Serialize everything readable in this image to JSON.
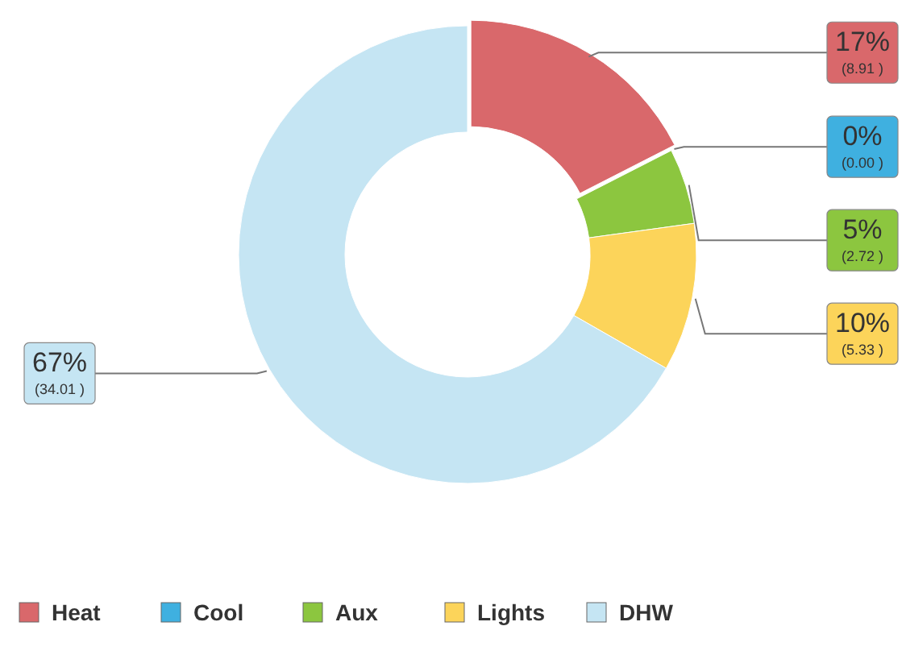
{
  "chart_data": {
    "type": "donut",
    "categories": [
      "Heat",
      "Cool",
      "Aux",
      "Lights",
      "DHW"
    ],
    "values": [
      8.91,
      0.0,
      2.72,
      5.33,
      34.01
    ],
    "colors": [
      "#d9686b",
      "#3fb0e0",
      "#8cc63f",
      "#fcd45a",
      "#c5e5f3"
    ],
    "value_labels": [
      "17%\n(8.91 )",
      "0%\n(0.00 )",
      "5%\n(2.72 )",
      "10%\n(5.33 )",
      "67%\n(34.01 )"
    ],
    "legend": "bottom"
  }
}
